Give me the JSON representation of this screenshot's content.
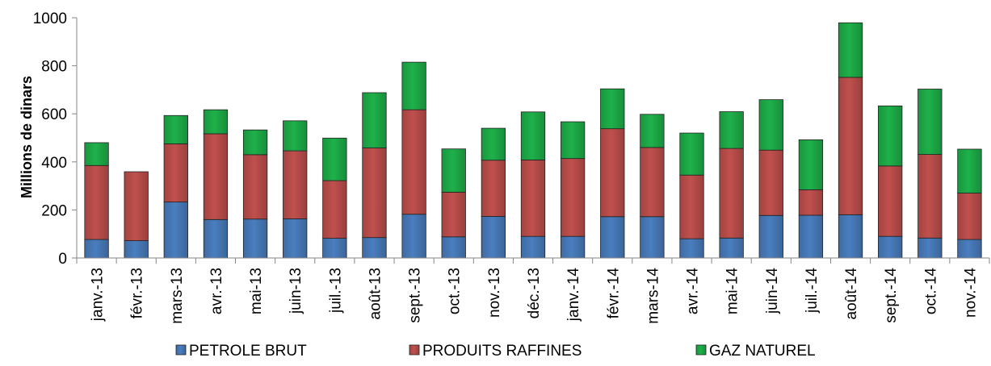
{
  "chart_data": {
    "type": "bar",
    "stacked": true,
    "ylabel": "Millions de dinars",
    "ylim": [
      0,
      1000
    ],
    "yticks": [
      0,
      200,
      400,
      600,
      800,
      1000
    ],
    "grid": false,
    "legend_position": "bottom",
    "categories": [
      "janv.-13",
      "févr.-13",
      "mars-13",
      "avr.-13",
      "mai-13",
      "juin-13",
      "juil.-13",
      "août-13",
      "sept.-13",
      "oct.-13",
      "nov.-13",
      "déc.-13",
      "janv.-14",
      "févr.-14",
      "mars-14",
      "avr.-14",
      "mai-14",
      "juin-14",
      "juil.-14",
      "août-14",
      "sept.-14",
      "oct.-14",
      "nov.-14"
    ],
    "series": [
      {
        "name": "PETROLE BRUT",
        "color": "#4a7ebf",
        "values": [
          77,
          72,
          233,
          160,
          162,
          163,
          82,
          85,
          182,
          88,
          173,
          90,
          90,
          172,
          172,
          80,
          83,
          177,
          178,
          180,
          90,
          83,
          77
        ]
      },
      {
        "name": "PRODUITS RAFFINES",
        "color": "#c0504d",
        "values": [
          308,
          287,
          242,
          357,
          268,
          283,
          240,
          373,
          435,
          186,
          234,
          318,
          324,
          366,
          288,
          265,
          373,
          272,
          106,
          572,
          293,
          348,
          193
        ]
      },
      {
        "name": "GAZ NATUREL",
        "color": "#1eb14a",
        "values": [
          95,
          0,
          118,
          100,
          103,
          125,
          177,
          230,
          198,
          180,
          133,
          200,
          153,
          166,
          138,
          175,
          153,
          210,
          208,
          227,
          250,
          272,
          183
        ]
      }
    ]
  }
}
